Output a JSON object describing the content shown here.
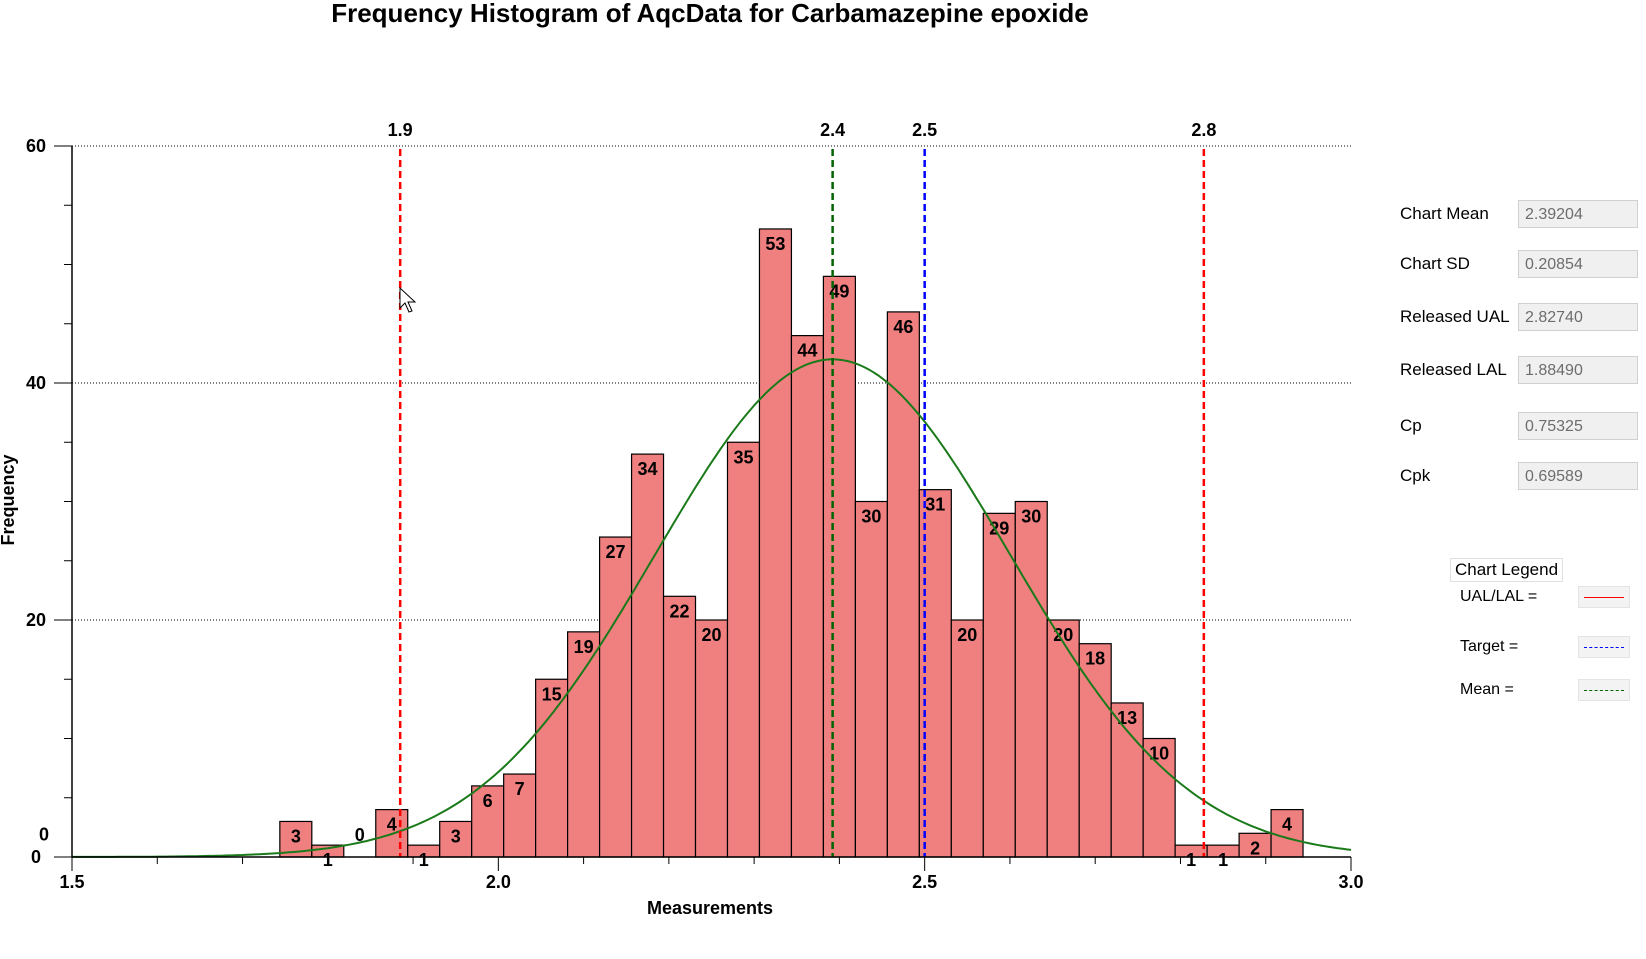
{
  "chart_data": {
    "type": "bar",
    "title": "Frequency Histogram of AqcData for Carbamazepine epoxide",
    "xlabel": "Measurements",
    "ylabel": "Frequency",
    "xlim": [
      1.5,
      3.0
    ],
    "ylim": [
      0,
      60
    ],
    "x_ticks": [
      "1.5",
      "2.0",
      "2.5",
      "3.0"
    ],
    "y_ticks": [
      "0",
      "20",
      "40",
      "60"
    ],
    "grid": "horizontal dotted",
    "bin_width": 0.0375,
    "bins": [
      {
        "x": 1.7625,
        "value": 3
      },
      {
        "x": 1.8,
        "value": 1
      },
      {
        "x": 1.8375,
        "value": 0
      },
      {
        "x": 1.875,
        "value": 4
      },
      {
        "x": 1.9125,
        "value": 1
      },
      {
        "x": 1.95,
        "value": 3
      },
      {
        "x": 1.9875,
        "value": 6
      },
      {
        "x": 2.025,
        "value": 7
      },
      {
        "x": 2.0625,
        "value": 15
      },
      {
        "x": 2.1,
        "value": 19
      },
      {
        "x": 2.1375,
        "value": 27
      },
      {
        "x": 2.175,
        "value": 34
      },
      {
        "x": 2.2125,
        "value": 22
      },
      {
        "x": 2.25,
        "value": 20
      },
      {
        "x": 2.2875,
        "value": 35
      },
      {
        "x": 2.325,
        "value": 53
      },
      {
        "x": 2.3625,
        "value": 44
      },
      {
        "x": 2.4,
        "value": 49
      },
      {
        "x": 2.4375,
        "value": 30
      },
      {
        "x": 2.475,
        "value": 46
      },
      {
        "x": 2.5125,
        "value": 31
      },
      {
        "x": 2.55,
        "value": 20
      },
      {
        "x": 2.5875,
        "value": 29
      },
      {
        "x": 2.625,
        "value": 30
      },
      {
        "x": 2.6625,
        "value": 20
      },
      {
        "x": 2.7,
        "value": 18
      },
      {
        "x": 2.7375,
        "value": 13
      },
      {
        "x": 2.775,
        "value": 10
      },
      {
        "x": 2.8125,
        "value": 1
      },
      {
        "x": 2.85,
        "value": 1
      },
      {
        "x": 2.8875,
        "value": 2
      },
      {
        "x": 2.925,
        "value": 4
      }
    ],
    "extra_labels": [
      {
        "text": "0",
        "x": 1.5,
        "y": 2
      }
    ],
    "reference_lines": [
      {
        "label": "1.9",
        "x": 1.8849,
        "role": "LAL",
        "color": "#ff0000"
      },
      {
        "label": "2.4",
        "x": 2.39204,
        "role": "Mean",
        "color": "#006400"
      },
      {
        "label": "2.5",
        "x": 2.5,
        "role": "Target",
        "color": "#0000ff"
      },
      {
        "label": "2.8",
        "x": 2.8274,
        "role": "UAL",
        "color": "#ff0000"
      }
    ],
    "normal_curve": {
      "mean": 2.39204,
      "sd": 0.20854,
      "peak": 42,
      "color": "#1a7a1a"
    },
    "bar_color": "#f08080",
    "stats": [
      {
        "label": "Chart Mean",
        "value": "2.39204"
      },
      {
        "label": "Chart SD",
        "value": "0.20854"
      },
      {
        "label": "Released UAL",
        "value": "2.82740"
      },
      {
        "label": "Released LAL",
        "value": "1.88490"
      },
      {
        "label": "Cp",
        "value": "0.75325"
      },
      {
        "label": "Cpk",
        "value": "0.69589"
      }
    ],
    "legend": {
      "title": "Chart Legend",
      "placement": "right",
      "items": [
        {
          "label": "UAL/LAL =",
          "color": "#ff0000"
        },
        {
          "label": "Target =",
          "color": "#0000ff"
        },
        {
          "label": "Mean =",
          "color": "#006400"
        }
      ]
    }
  }
}
